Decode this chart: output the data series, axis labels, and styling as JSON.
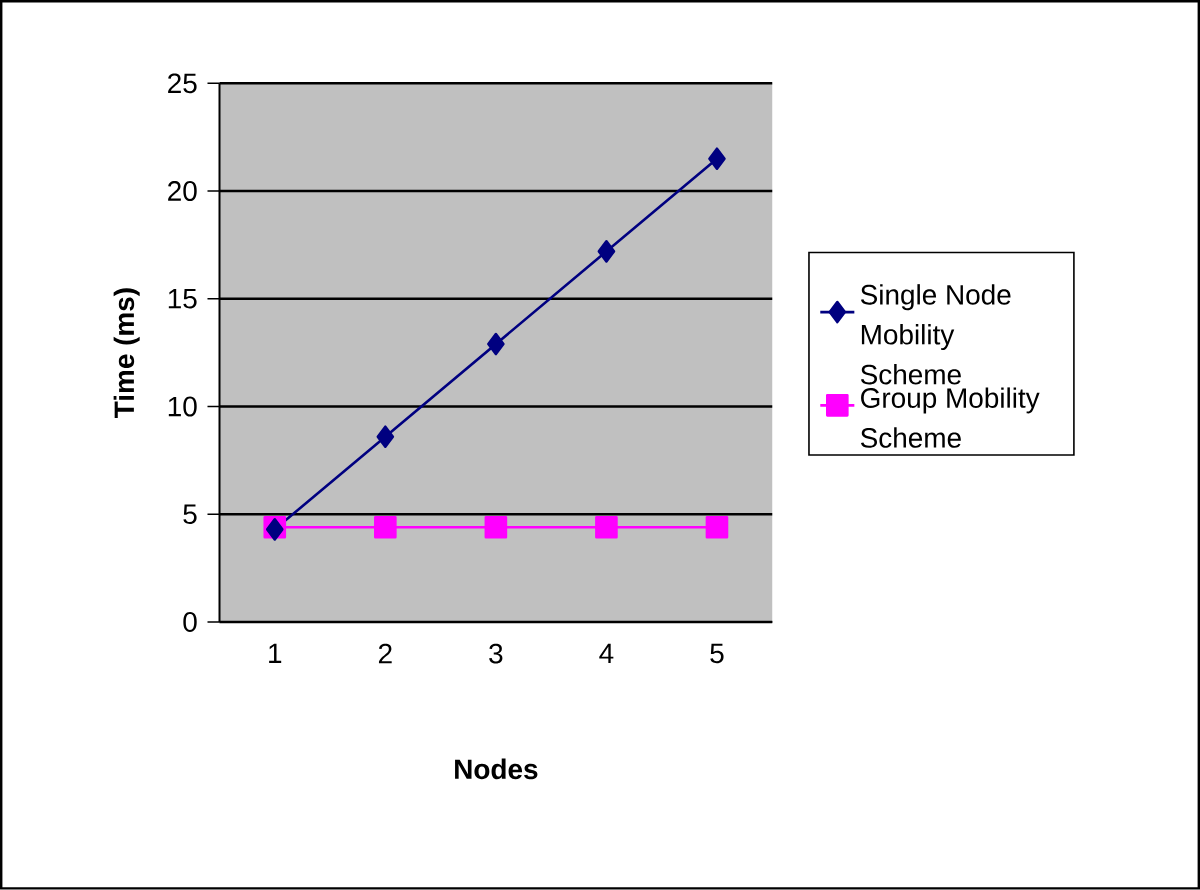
{
  "chart_data": {
    "type": "line",
    "xlabel": "Nodes",
    "ylabel": "Time (ms)",
    "categories": [
      "1",
      "2",
      "3",
      "4",
      "5"
    ],
    "series": [
      {
        "name": "Single Node Mobility Scheme",
        "color": "#000080",
        "marker": "diamond",
        "values": [
          4.3,
          8.6,
          12.9,
          17.2,
          21.5
        ]
      },
      {
        "name": "Group Mobility Scheme",
        "color": "#ff00ff",
        "marker": "square",
        "values": [
          4.4,
          4.4,
          4.4,
          4.4,
          4.4
        ]
      }
    ],
    "ylim": [
      0,
      25
    ],
    "yticks": [
      0,
      5,
      10,
      15,
      20,
      25
    ],
    "grid": "y",
    "legend": "right"
  }
}
